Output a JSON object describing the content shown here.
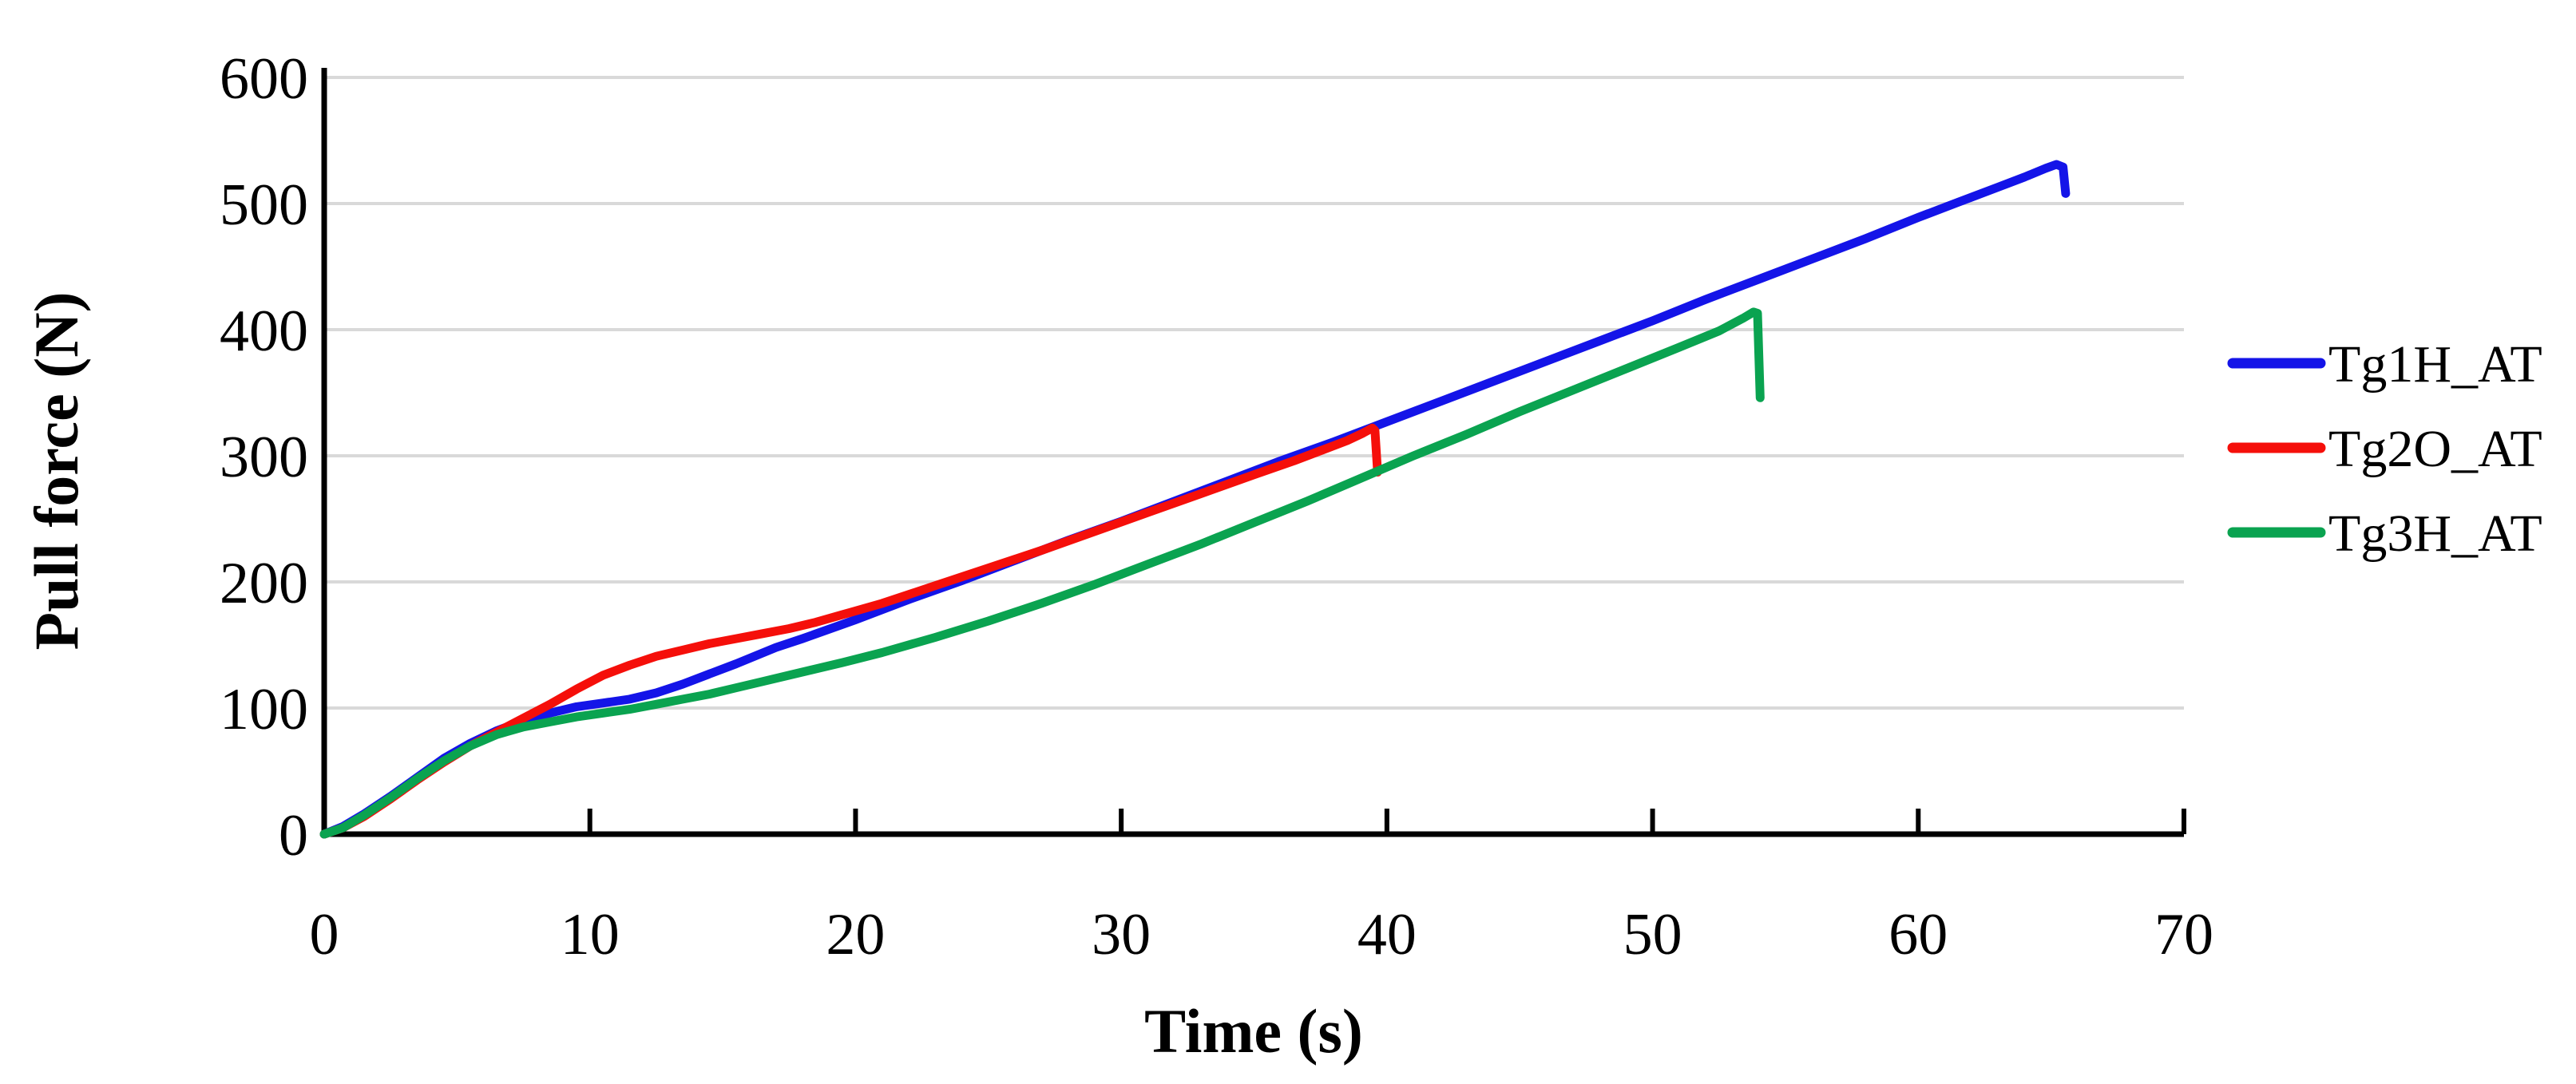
{
  "chart_data": {
    "type": "line",
    "title": "",
    "xlabel": "Time (s)",
    "ylabel": "Pull force (N)",
    "xlim": [
      0,
      70
    ],
    "ylim": [
      0,
      600
    ],
    "x_ticks": [
      0,
      10,
      20,
      30,
      40,
      50,
      60,
      70
    ],
    "y_ticks": [
      0,
      100,
      200,
      300,
      400,
      500,
      600
    ],
    "grid": "horizontal-only",
    "gridline_color": "#d9d9d9",
    "axis_color": "#000000",
    "legend_position": "right-middle",
    "series": [
      {
        "name": "Tg1H_AT",
        "color": "#1414e8",
        "points": [
          [
            0,
            0
          ],
          [
            0.7,
            6
          ],
          [
            1.5,
            16
          ],
          [
            2.5,
            30
          ],
          [
            3.5,
            45
          ],
          [
            4.5,
            60
          ],
          [
            5.5,
            72
          ],
          [
            6.5,
            82
          ],
          [
            7.5,
            90
          ],
          [
            8.5,
            96
          ],
          [
            9.5,
            101
          ],
          [
            10.5,
            104
          ],
          [
            11.5,
            107
          ],
          [
            12.5,
            112
          ],
          [
            13.5,
            119
          ],
          [
            14.5,
            127
          ],
          [
            15.5,
            135
          ],
          [
            17,
            148
          ],
          [
            18,
            155
          ],
          [
            20,
            170
          ],
          [
            22,
            186
          ],
          [
            24,
            201
          ],
          [
            26,
            217
          ],
          [
            28,
            233
          ],
          [
            30,
            248
          ],
          [
            32,
            264
          ],
          [
            34,
            280
          ],
          [
            36,
            296
          ],
          [
            38,
            311
          ],
          [
            40,
            327
          ],
          [
            42,
            343
          ],
          [
            44,
            359
          ],
          [
            46,
            375
          ],
          [
            48,
            391
          ],
          [
            50,
            407
          ],
          [
            52,
            424
          ],
          [
            54,
            440
          ],
          [
            56,
            456
          ],
          [
            58,
            472
          ],
          [
            60,
            489
          ],
          [
            61.5,
            501
          ],
          [
            63,
            513
          ],
          [
            64,
            521
          ],
          [
            64.8,
            528
          ],
          [
            65.2,
            531
          ],
          [
            65.45,
            529
          ],
          [
            65.55,
            508
          ]
        ]
      },
      {
        "name": "Tg2O_AT",
        "color": "#f50f0a",
        "points": [
          [
            0,
            0
          ],
          [
            0.7,
            5
          ],
          [
            1.5,
            14
          ],
          [
            2.5,
            28
          ],
          [
            3.5,
            43
          ],
          [
            4.5,
            57
          ],
          [
            5.5,
            70
          ],
          [
            6.5,
            81
          ],
          [
            7.5,
            92
          ],
          [
            8.5,
            103
          ],
          [
            9.5,
            115
          ],
          [
            10.5,
            126
          ],
          [
            11.5,
            134
          ],
          [
            12.5,
            141
          ],
          [
            13.5,
            146
          ],
          [
            14.5,
            151
          ],
          [
            15.5,
            155
          ],
          [
            16.5,
            159
          ],
          [
            17.5,
            163
          ],
          [
            18.5,
            168
          ],
          [
            19.5,
            174
          ],
          [
            21,
            183
          ],
          [
            23,
            197
          ],
          [
            25,
            211
          ],
          [
            27,
            225
          ],
          [
            29,
            240
          ],
          [
            31,
            255
          ],
          [
            33,
            270
          ],
          [
            35,
            285
          ],
          [
            36.5,
            296
          ],
          [
            37.5,
            304
          ],
          [
            38.5,
            312
          ],
          [
            39.1,
            318
          ],
          [
            39.45,
            322
          ],
          [
            39.55,
            320
          ],
          [
            39.65,
            287
          ]
        ]
      },
      {
        "name": "Tg3H_AT",
        "color": "#0aa350",
        "points": [
          [
            0,
            0
          ],
          [
            0.7,
            5
          ],
          [
            1.5,
            15
          ],
          [
            2.5,
            29
          ],
          [
            3.5,
            44
          ],
          [
            4.5,
            58
          ],
          [
            5.5,
            70
          ],
          [
            6.5,
            79
          ],
          [
            7.5,
            85
          ],
          [
            8.5,
            89
          ],
          [
            9.5,
            93
          ],
          [
            10.5,
            96
          ],
          [
            11.5,
            99
          ],
          [
            12.5,
            103
          ],
          [
            13.5,
            107
          ],
          [
            14.5,
            111
          ],
          [
            15.5,
            116
          ],
          [
            16.5,
            121
          ],
          [
            17.5,
            126
          ],
          [
            18.5,
            131
          ],
          [
            19.5,
            136
          ],
          [
            21,
            144
          ],
          [
            23,
            156
          ],
          [
            25,
            169
          ],
          [
            27,
            183
          ],
          [
            29,
            198
          ],
          [
            31,
            214
          ],
          [
            33,
            230
          ],
          [
            35,
            247
          ],
          [
            37,
            264
          ],
          [
            39,
            282
          ],
          [
            41,
            300
          ],
          [
            43,
            317
          ],
          [
            45,
            335
          ],
          [
            47,
            352
          ],
          [
            49,
            369
          ],
          [
            51,
            386
          ],
          [
            52.5,
            399
          ],
          [
            53.4,
            409
          ],
          [
            53.8,
            414
          ],
          [
            53.95,
            413
          ],
          [
            54.05,
            346
          ]
        ]
      }
    ]
  }
}
